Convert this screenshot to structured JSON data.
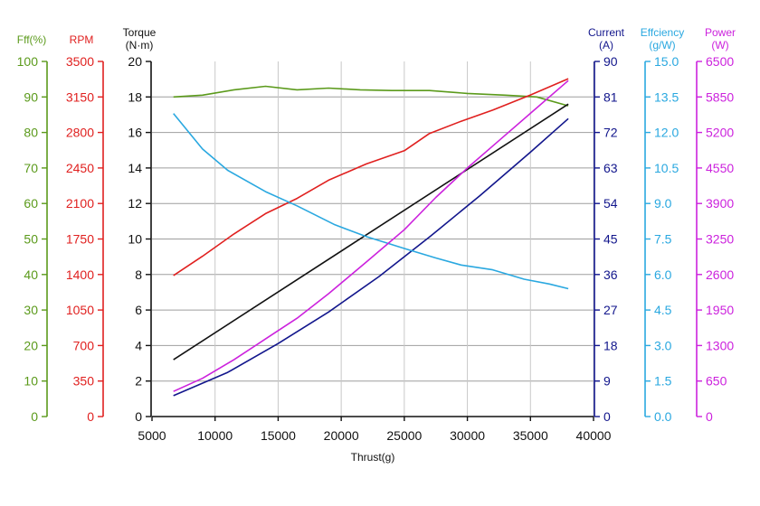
{
  "chart_data": {
    "type": "line",
    "xlabel": "Thrust(g)",
    "x_ticks": [
      "5000",
      "10000",
      "15000",
      "20000",
      "25000",
      "30000",
      "35000",
      "40000"
    ],
    "xlim": [
      5000,
      40000
    ],
    "grid": true,
    "axes": [
      {
        "id": "eff",
        "label": "Fff(%)",
        "side": "left",
        "color": "#5b9a1b",
        "min": 0,
        "max": 100,
        "ticks": [
          "0",
          "10",
          "20",
          "30",
          "40",
          "50",
          "60",
          "70",
          "80",
          "90",
          "100"
        ]
      },
      {
        "id": "rpm",
        "label": "RPM",
        "side": "left",
        "color": "#e0201f",
        "min": 0,
        "max": 3500,
        "ticks": [
          "0",
          "350",
          "700",
          "1050",
          "1400",
          "1750",
          "2100",
          "2450",
          "2800",
          "3150",
          "3500"
        ]
      },
      {
        "id": "torque",
        "label_lines": [
          "Torque",
          "(N·m)"
        ],
        "side": "left",
        "color": "#111111",
        "min": 0,
        "max": 20,
        "ticks": [
          "0",
          "2",
          "4",
          "6",
          "8",
          "10",
          "12",
          "14",
          "16",
          "18",
          "20"
        ]
      },
      {
        "id": "current",
        "label_lines": [
          "Current",
          "(A)"
        ],
        "side": "right",
        "color": "#12168c",
        "min": 0,
        "max": 90,
        "ticks": [
          "0",
          "9",
          "18",
          "27",
          "36",
          "45",
          "54",
          "63",
          "72",
          "81",
          "90"
        ]
      },
      {
        "id": "efficiency",
        "label_lines": [
          "Effciency",
          "(g/W)"
        ],
        "side": "right",
        "color": "#2aa8e0",
        "min": 0,
        "max": 15,
        "ticks": [
          "0.0",
          "1.5",
          "3.0",
          "4.5",
          "6.0",
          "7.5",
          "9.0",
          "10.5",
          "12.0",
          "13.5",
          "15.0"
        ]
      },
      {
        "id": "power",
        "label_lines": [
          "Power",
          "(W)"
        ],
        "side": "right",
        "color": "#cc22dd",
        "min": 0,
        "max": 6500,
        "ticks": [
          "0",
          "650",
          "1300",
          "1950",
          "2600",
          "3250",
          "3900",
          "4550",
          "5200",
          "5850",
          "6500"
        ]
      }
    ],
    "series": [
      {
        "axis": "eff",
        "color": "#5b9a1b",
        "x": [
          6700,
          9000,
          11500,
          14000,
          16500,
          19000,
          21500,
          24000,
          27000,
          30000,
          33000,
          35500,
          38000
        ],
        "y": [
          90,
          90.5,
          92,
          93,
          92,
          92.5,
          92,
          91.8,
          91.8,
          91,
          90.5,
          90,
          87.5
        ]
      },
      {
        "axis": "rpm",
        "color": "#e0201f",
        "x": [
          6700,
          9000,
          11500,
          14000,
          16500,
          19000,
          22000,
          25000,
          27000,
          29500,
          32000,
          35000,
          38000
        ],
        "y": [
          1390,
          1580,
          1800,
          2000,
          2150,
          2330,
          2490,
          2620,
          2790,
          2910,
          3020,
          3170,
          3330
        ]
      },
      {
        "axis": "torque",
        "color": "#111111",
        "x": [
          6700,
          38000
        ],
        "y": [
          3.2,
          17.6
        ]
      },
      {
        "axis": "current",
        "color": "#12168c",
        "x": [
          6700,
          11000,
          15000,
          19000,
          23000,
          27000,
          31000,
          35000,
          38000
        ],
        "y": [
          5.3,
          11.2,
          18.5,
          26.5,
          35.5,
          45.5,
          56,
          67,
          75.5
        ]
      },
      {
        "axis": "efficiency",
        "color": "#2aa8e0",
        "x": [
          6700,
          9000,
          11000,
          14000,
          16500,
          19500,
          22000,
          25000,
          27500,
          29500,
          32000,
          34500,
          36500,
          38000
        ],
        "y": [
          12.8,
          11.3,
          10.4,
          9.5,
          8.9,
          8.1,
          7.6,
          7.1,
          6.7,
          6.4,
          6.2,
          5.8,
          5.6,
          5.4
        ]
      },
      {
        "axis": "power",
        "color": "#cc22dd",
        "x": [
          6700,
          9000,
          11500,
          14000,
          16500,
          19000,
          22000,
          25000,
          27500,
          30000,
          32500,
          35000,
          38000
        ],
        "y": [
          460,
          700,
          1040,
          1420,
          1800,
          2250,
          2830,
          3420,
          4010,
          4550,
          5050,
          5550,
          6150
        ]
      }
    ]
  }
}
